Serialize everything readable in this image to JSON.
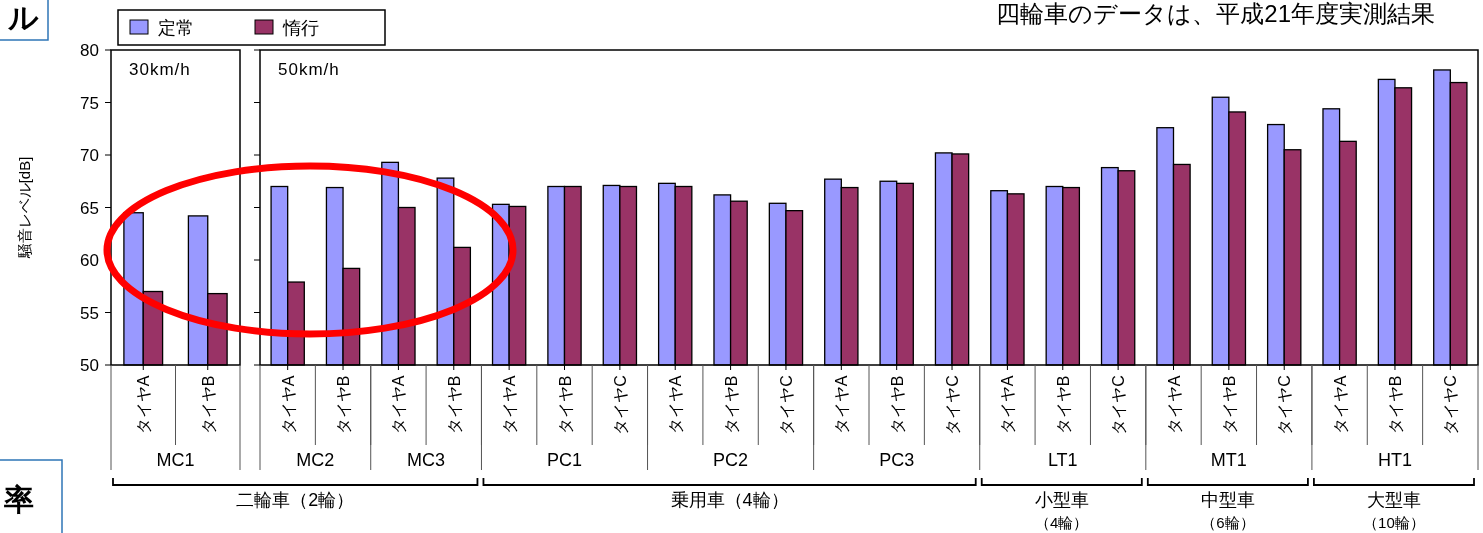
{
  "chart_data": [
    {
      "type": "bar",
      "ylabel": "騒音レベル[dB]",
      "categories": [
        "タイヤA",
        "タイヤB"
      ],
      "series": [
        {
          "name": "定常",
          "color": "#9999ff",
          "values": [
            64.5,
            64.2
          ]
        },
        {
          "name": "惰行",
          "color": "#993366",
          "values": [
            57.0,
            56.8
          ]
        }
      ],
      "ylim": [
        50,
        80
      ],
      "yticks": [
        50,
        55,
        60,
        65,
        70,
        75,
        80
      ],
      "legend": "top",
      "annotations": [
        "ル",
        "率",
        "30km/h",
        "MC1"
      ]
    },
    {
      "type": "bar",
      "categories": [
        "タイヤA",
        "タイヤB",
        "タイヤA",
        "タイヤB",
        "タイヤA",
        "タイヤB",
        "タイヤC",
        "タイヤA",
        "タイヤB",
        "タイヤC",
        "タイヤA",
        "タイヤB",
        "タイヤC",
        "タイヤA",
        "タイヤB",
        "タイヤC",
        "タイヤA",
        "タイヤB",
        "タイヤC",
        "タイヤA",
        "タイヤB",
        "タイヤC"
      ],
      "series": [
        {
          "color": "#9999ff",
          "values": [
            67.0,
            66.9,
            69.3,
            67.8,
            65.3,
            67.0,
            67.1,
            67.3,
            66.2,
            65.4,
            67.7,
            67.5,
            70.2,
            66.6,
            67.0,
            68.8,
            72.6,
            75.5,
            72.9,
            74.4,
            77.2,
            78.1
          ]
        },
        {
          "color": "#993366",
          "values": [
            57.9,
            59.2,
            65.0,
            61.2,
            65.1,
            67.0,
            67.0,
            67.0,
            65.6,
            64.7,
            66.9,
            67.3,
            70.1,
            66.3,
            66.9,
            68.5,
            69.1,
            74.1,
            70.5,
            71.3,
            76.4,
            76.9
          ]
        }
      ],
      "ylim": [
        50,
        80
      ],
      "yticks": [
        50,
        55,
        60,
        65,
        70,
        75,
        80
      ],
      "tick_labels": "x",
      "annotations": [
        "四輪車のデータは、平成21年度実測結果",
        "50km/h",
        "MC2",
        "MC3",
        "PC1",
        "PC2",
        "PC3",
        "LT1",
        "MT1",
        "HT1",
        "二輪車（2輪）",
        "乗用車（4輪）",
        "小型車",
        "（4輪）",
        "中型車",
        "（6輪）",
        "大型車",
        "（10輪）"
      ]
    }
  ]
}
